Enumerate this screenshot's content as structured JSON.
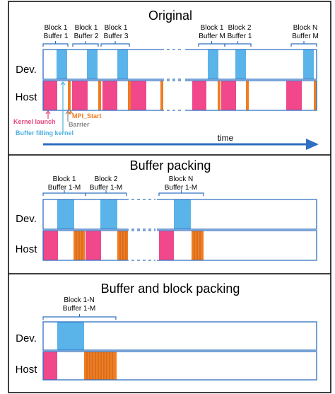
{
  "colors": {
    "device": "#5ab4ea",
    "kernel": "#f0488b",
    "mpi": "#f07d22",
    "outline": "#2e6fc1",
    "annot_kernel": "#e4457c",
    "annot_fill": "#4fb0e0",
    "annot_barrier": "#888888",
    "annot_mpi": "#f07d22"
  },
  "row_labels": {
    "dev": "Dev.",
    "host": "Host"
  },
  "time_label": "time",
  "annotations": {
    "mpi_start": "MPI_Start",
    "barrier": "Barrier",
    "kernel_launch": "Kernel launch",
    "buffer_filling": "Buffer filling kernel"
  },
  "panels": [
    {
      "title": "Original",
      "braces": [
        {
          "line1": "Block 1",
          "line2": "Buffer 1"
        },
        {
          "line1": "Block 1",
          "line2": "Buffer 2"
        },
        {
          "line1": "Block 1",
          "line2": "Buffer 3"
        },
        {
          "line1": "Block 1",
          "line2": "Buffer M"
        },
        {
          "line1": "Block 2",
          "line2": "Buffer 1"
        },
        {
          "line1": "Block N",
          "line2": "Buffer M"
        }
      ]
    },
    {
      "title": "Buffer packing",
      "braces": [
        {
          "line1": "Block 1",
          "line2": "Buffer 1-M"
        },
        {
          "line1": "Block 2",
          "line2": "Buffer 1-M"
        },
        {
          "line1": "Block N",
          "line2": "Buffer 1-M"
        }
      ]
    },
    {
      "title": "Buffer and block packing",
      "braces": [
        {
          "line1": "Block 1-N",
          "line2": "Buffer 1-M"
        }
      ]
    }
  ]
}
